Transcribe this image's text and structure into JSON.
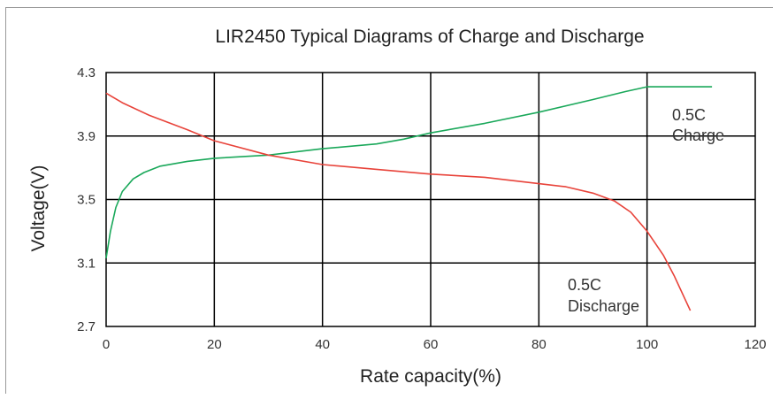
{
  "chart_data": {
    "type": "line",
    "title": "LIR2450 Typical Diagrams of Charge and Discharge",
    "xlabel": "Rate capacity(%)",
    "ylabel": "Voltage(V)",
    "xlim": [
      0,
      120
    ],
    "ylim": [
      2.7,
      4.3
    ],
    "xticks": [
      0,
      20,
      40,
      60,
      80,
      100,
      120
    ],
    "yticks": [
      "4.3",
      "3.9",
      "3.5",
      "3.1",
      "2.7"
    ],
    "grid": true,
    "annotations": [
      {
        "series": "charge",
        "lines": [
          "0.5C",
          "Charge"
        ]
      },
      {
        "series": "discharge",
        "lines": [
          "0.5C",
          "Discharge"
        ]
      }
    ],
    "series": [
      {
        "key": "charge",
        "color": "#1aa85a",
        "points": [
          [
            0,
            3.13
          ],
          [
            0.8,
            3.3
          ],
          [
            1.8,
            3.45
          ],
          [
            3,
            3.55
          ],
          [
            5,
            3.63
          ],
          [
            7,
            3.67
          ],
          [
            10,
            3.71
          ],
          [
            15,
            3.74
          ],
          [
            20,
            3.76
          ],
          [
            30,
            3.78
          ],
          [
            40,
            3.82
          ],
          [
            50,
            3.85
          ],
          [
            55,
            3.88
          ],
          [
            60,
            3.92
          ],
          [
            70,
            3.98
          ],
          [
            80,
            4.05
          ],
          [
            90,
            4.13
          ],
          [
            96,
            4.18
          ],
          [
            100,
            4.21
          ],
          [
            102,
            4.21
          ],
          [
            112,
            4.21
          ]
        ]
      },
      {
        "key": "discharge",
        "color": "#e8433a",
        "points": [
          [
            0,
            4.17
          ],
          [
            3,
            4.11
          ],
          [
            8,
            4.03
          ],
          [
            15,
            3.94
          ],
          [
            20,
            3.87
          ],
          [
            30,
            3.78
          ],
          [
            40,
            3.72
          ],
          [
            50,
            3.69
          ],
          [
            60,
            3.66
          ],
          [
            70,
            3.64
          ],
          [
            80,
            3.6
          ],
          [
            85,
            3.58
          ],
          [
            90,
            3.54
          ],
          [
            94,
            3.49
          ],
          [
            97,
            3.42
          ],
          [
            100,
            3.3
          ],
          [
            103,
            3.15
          ],
          [
            105,
            3.02
          ],
          [
            108,
            2.8
          ]
        ]
      }
    ]
  }
}
